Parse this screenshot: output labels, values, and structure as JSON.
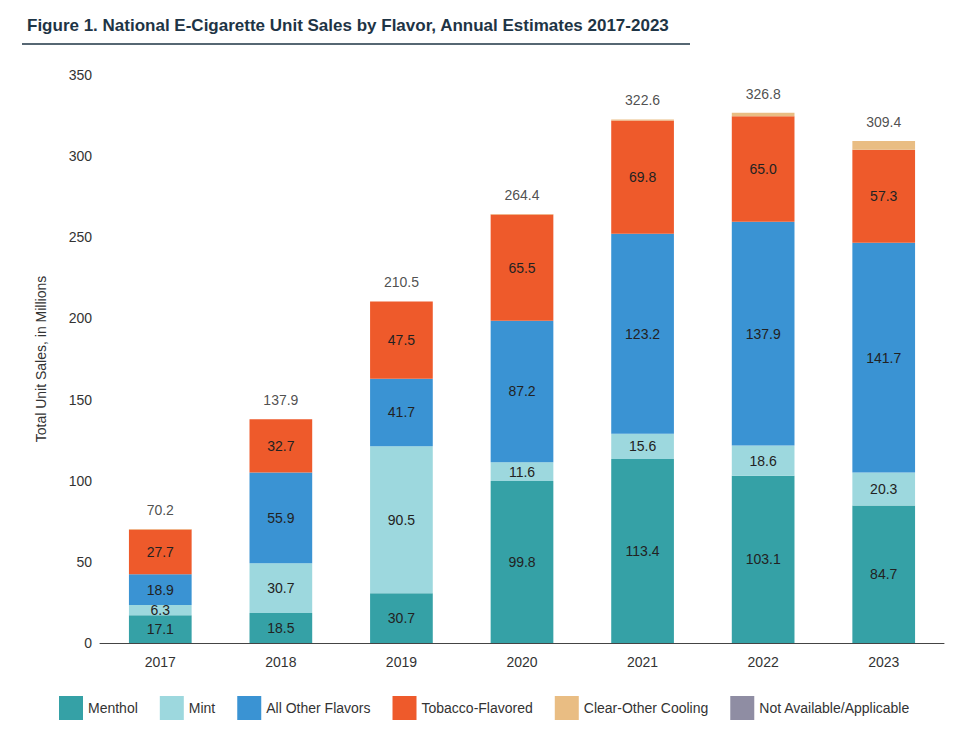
{
  "chart_data": {
    "type": "bar",
    "title": "Figure 1. National E-Cigarette Unit Sales by Flavor, Annual Estimates 2017-2023",
    "y_label": "Total Unit Sales, in Millions",
    "categories": [
      "2017",
      "2018",
      "2019",
      "2020",
      "2021",
      "2022",
      "2023"
    ],
    "stacked": true,
    "data_labels": true,
    "legend": "bottom",
    "grid": false,
    "ylim": [
      0,
      350
    ],
    "yticks": [
      0,
      50,
      100,
      150,
      200,
      250,
      300,
      350
    ],
    "series": [
      {
        "name": "Menthol",
        "color": "#35a1a6",
        "values": [
          17.1,
          18.5,
          30.7,
          99.8,
          113.4,
          103.1,
          84.7
        ],
        "value_labels": [
          "17.1",
          "18.5",
          "30.7",
          "99.8",
          "113.4",
          "103.1",
          "84.7"
        ]
      },
      {
        "name": "Mint",
        "color": "#9dd8de",
        "values": [
          6.3,
          30.7,
          90.5,
          11.6,
          15.6,
          18.6,
          20.3
        ],
        "value_labels": [
          "6.3",
          "30.7",
          "90.5",
          "11.6",
          "15.6",
          "18.6",
          "20.3"
        ]
      },
      {
        "name": "All Other Flavors",
        "color": "#3a93d3",
        "values": [
          18.9,
          55.9,
          41.7,
          87.2,
          123.2,
          137.9,
          141.7
        ],
        "value_labels": [
          "18.9",
          "55.9",
          "41.7",
          "87.2",
          "123.2",
          "137.9",
          "141.7"
        ]
      },
      {
        "name": "Tobacco-Flavored",
        "color": "#ee5a2b",
        "values": [
          27.7,
          32.7,
          47.5,
          65.5,
          69.8,
          65.0,
          57.3
        ],
        "value_labels": [
          "27.7",
          "32.7",
          "47.5",
          "65.5",
          "69.8",
          "65.0",
          "57.3"
        ]
      },
      {
        "name": "Clear-Other Cooling",
        "color": "#e9bd83",
        "data_labels": false,
        "values": [
          0.2,
          0.1,
          0.1,
          0.3,
          0.6,
          2.2,
          5.4
        ]
      },
      {
        "name": "Not Available/Applicable",
        "color": "#8f8da3",
        "data_labels": false,
        "values": [
          0,
          0,
          0,
          0,
          0,
          0,
          0
        ]
      }
    ],
    "totals": [
      70.2,
      137.9,
      210.5,
      264.4,
      322.6,
      326.8,
      309.4
    ]
  }
}
